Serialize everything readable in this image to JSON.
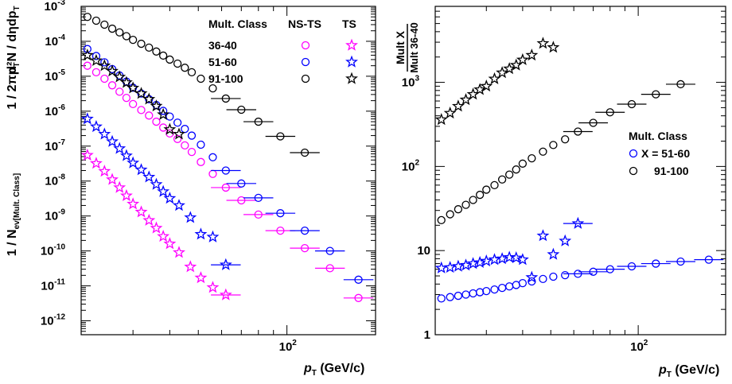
{
  "chart_data": [
    {
      "type": "scatter",
      "xlabel": "p_T (GeV/c)",
      "ylabel": "1/N_ev[Mult. Class] 1/(2π p_T) d²N/(dη dp_T)",
      "xscale": "log",
      "yscale": "log",
      "xlim": [
        20,
        200
      ],
      "ylim": [
        4e-13,
        0.001
      ],
      "x_tick_labels": [
        "10^2"
      ],
      "y_tick_labels": [
        "10^-3",
        "10^-4",
        "10^-5",
        "10^-6",
        "10^-7",
        "10^-8",
        "10^-9",
        "10^-10",
        "10^-11",
        "10^-12"
      ],
      "legend": {
        "placement": "top-right",
        "header": [
          "Mult. Class",
          "NS-TS",
          "TS"
        ],
        "rows": [
          "36-40",
          "51-60",
          "91-100"
        ]
      },
      "series": [
        {
          "name": "36-40 NS-TS",
          "color": "#ff00ff",
          "marker": "circle",
          "x": [
            21,
            22.5,
            24,
            25.5,
            27,
            28.5,
            30,
            32,
            34,
            36,
            38,
            40,
            42.5,
            45,
            47.5,
            51,
            56,
            62,
            70,
            80,
            95,
            115,
            140,
            175
          ],
          "y": [
            2e-05,
            1.3e-05,
            8.5e-06,
            5.5e-06,
            3.6e-06,
            2.4e-06,
            1.6e-06,
            1.08e-06,
            7.5e-07,
            5e-07,
            3.4e-07,
            2.3e-07,
            1.6e-07,
            1.05e-07,
            6.8e-08,
            3.5e-08,
            1.6e-08,
            6.5e-09,
            2.8e-09,
            1.1e-09,
            3.8e-10,
            1.2e-10,
            3.2e-11,
            4.5e-12
          ]
        },
        {
          "name": "51-60 NS-TS",
          "color": "#0000ff",
          "marker": "circle",
          "x": [
            21,
            22.5,
            24,
            25.5,
            27,
            28.5,
            30,
            32,
            34,
            36,
            38,
            40,
            42.5,
            45,
            47.5,
            51,
            56,
            62,
            70,
            80,
            95,
            115,
            140,
            175
          ],
          "y": [
            6e-05,
            3.8e-05,
            2.5e-05,
            1.6e-05,
            1.05e-05,
            7e-06,
            4.7e-06,
            3.2e-06,
            2.2e-06,
            1.5e-06,
            1.02e-06,
            7e-07,
            4.7e-07,
            3.1e-07,
            2e-07,
            1.1e-07,
            4.8e-08,
            2e-08,
            8.5e-09,
            3.3e-09,
            1.2e-09,
            3.8e-10,
            1e-10,
            1.5e-11
          ]
        },
        {
          "name": "91-100 NS-TS",
          "color": "#000000",
          "marker": "circle",
          "x": [
            21,
            22.5,
            24,
            25.5,
            27,
            28.5,
            30,
            32,
            34,
            36,
            38,
            40,
            42.5,
            45,
            47.5,
            51,
            56,
            62,
            70,
            80,
            95,
            115
          ],
          "y": [
            0.0005,
            0.00039,
            0.0003,
            0.00023,
            0.00018,
            0.00014,
            0.00011,
            8.5e-05,
            6.6e-05,
            5.1e-05,
            3.9e-05,
            3e-05,
            2.3e-05,
            1.75e-05,
            1.3e-05,
            8.5e-06,
            4.5e-06,
            2.3e-06,
            1.1e-06,
            5e-07,
            1.9e-07,
            6.5e-08
          ]
        },
        {
          "name": "36-40 TS",
          "color": "#ff00ff",
          "marker": "star",
          "x": [
            21,
            22.5,
            24,
            25.5,
            27,
            28.5,
            30,
            32,
            34,
            36,
            38,
            40,
            43,
            47,
            51,
            56,
            62
          ],
          "y": [
            5.5e-08,
            3.2e-08,
            1.9e-08,
            1.1e-08,
            6.5e-09,
            3.8e-09,
            2.2e-09,
            1.3e-09,
            7.5e-10,
            4.5e-10,
            2.6e-10,
            1.6e-10,
            9e-11,
            3.5e-11,
            1.7e-11,
            9e-12,
            5.5e-12
          ]
        },
        {
          "name": "51-60 TS",
          "color": "#0000ff",
          "marker": "star",
          "x": [
            21,
            22.5,
            24,
            25.5,
            27,
            28.5,
            30,
            32,
            34,
            36,
            38,
            40,
            43,
            47,
            51,
            56,
            62
          ],
          "y": [
            6e-07,
            3.6e-07,
            2.2e-07,
            1.35e-07,
            8.5e-08,
            5.3e-08,
            3.3e-08,
            2.1e-08,
            1.3e-08,
            8e-09,
            5e-09,
            3.2e-09,
            2e-09,
            9e-10,
            3e-10,
            2.5e-10,
            4e-11
          ]
        },
        {
          "name": "91-100 TS",
          "color": "#000000",
          "marker": "star",
          "x": [
            21,
            22.5,
            24,
            25.5,
            27,
            28.5,
            30,
            32,
            34,
            36,
            38,
            40,
            43
          ],
          "y": [
            4e-05,
            2.8e-05,
            2e-05,
            1.4e-05,
            9.5e-06,
            6.6e-06,
            4.6e-06,
            3.2e-06,
            2.2e-06,
            1.4e-06,
            8e-07,
            3e-07,
            2.2e-07
          ]
        }
      ]
    },
    {
      "type": "scatter",
      "xlabel": "p_T (GeV/c)",
      "ylabel": "Mult X / Mult 36-40",
      "xscale": "log",
      "yscale": "log",
      "xlim": [
        20,
        200
      ],
      "ylim": [
        1,
        8000
      ],
      "x_tick_labels": [
        "10^2"
      ],
      "y_tick_labels": [
        "1",
        "10",
        "10^2",
        "10^3"
      ],
      "legend": {
        "placement": "center-right",
        "header": "Mult. Class",
        "rows": [
          "X = 51-60",
          "91-100"
        ]
      },
      "series": [
        {
          "name": "X = 51-60",
          "color": "#0000ff",
          "marker": "circle",
          "x": [
            21,
            22.5,
            24,
            25.5,
            27,
            28.5,
            30,
            32,
            34,
            36,
            38,
            40,
            43,
            47,
            51,
            56,
            62,
            70,
            80,
            95,
            115,
            140,
            175
          ],
          "y": [
            2.7,
            2.8,
            2.9,
            3.0,
            3.1,
            3.2,
            3.3,
            3.45,
            3.6,
            3.75,
            3.9,
            4.1,
            4.3,
            4.6,
            4.9,
            5.1,
            5.3,
            5.6,
            6.0,
            6.5,
            7.0,
            7.4,
            7.8
          ]
        },
        {
          "name": "91-100",
          "color": "#000000",
          "marker": "circle",
          "x": [
            21,
            22.5,
            24,
            25.5,
            27,
            28.5,
            30,
            32,
            34,
            36,
            38,
            40,
            43,
            47,
            51,
            56,
            62,
            70,
            80,
            95,
            115,
            140
          ],
          "y": [
            23,
            27,
            31,
            35,
            40,
            46,
            53,
            60,
            70,
            80,
            92,
            108,
            125,
            150,
            180,
            210,
            260,
            330,
            440,
            550,
            720,
            950
          ]
        },
        {
          "name": "51-60 TS",
          "color": "#0000ff",
          "marker": "star",
          "x": [
            21,
            22.5,
            24,
            25.5,
            27,
            28.5,
            30,
            32,
            34,
            36,
            38,
            40,
            43,
            47,
            51,
            56,
            62
          ],
          "y": [
            6.2,
            6.3,
            6.5,
            6.7,
            7.0,
            7.2,
            7.5,
            7.8,
            8.0,
            8.3,
            8.2,
            7.8,
            4.8,
            15,
            9,
            13,
            21
          ]
        },
        {
          "name": "91-100 TS",
          "color": "#000000",
          "marker": "star",
          "x": [
            21,
            22.5,
            24,
            25.5,
            27,
            28.5,
            30,
            32,
            34,
            36,
            38,
            40,
            43,
            47,
            51
          ],
          "y": [
            360,
            430,
            520,
            620,
            720,
            820,
            900,
            1100,
            1300,
            1450,
            1600,
            1850,
            2100,
            2900,
            2600
          ]
        }
      ]
    }
  ]
}
